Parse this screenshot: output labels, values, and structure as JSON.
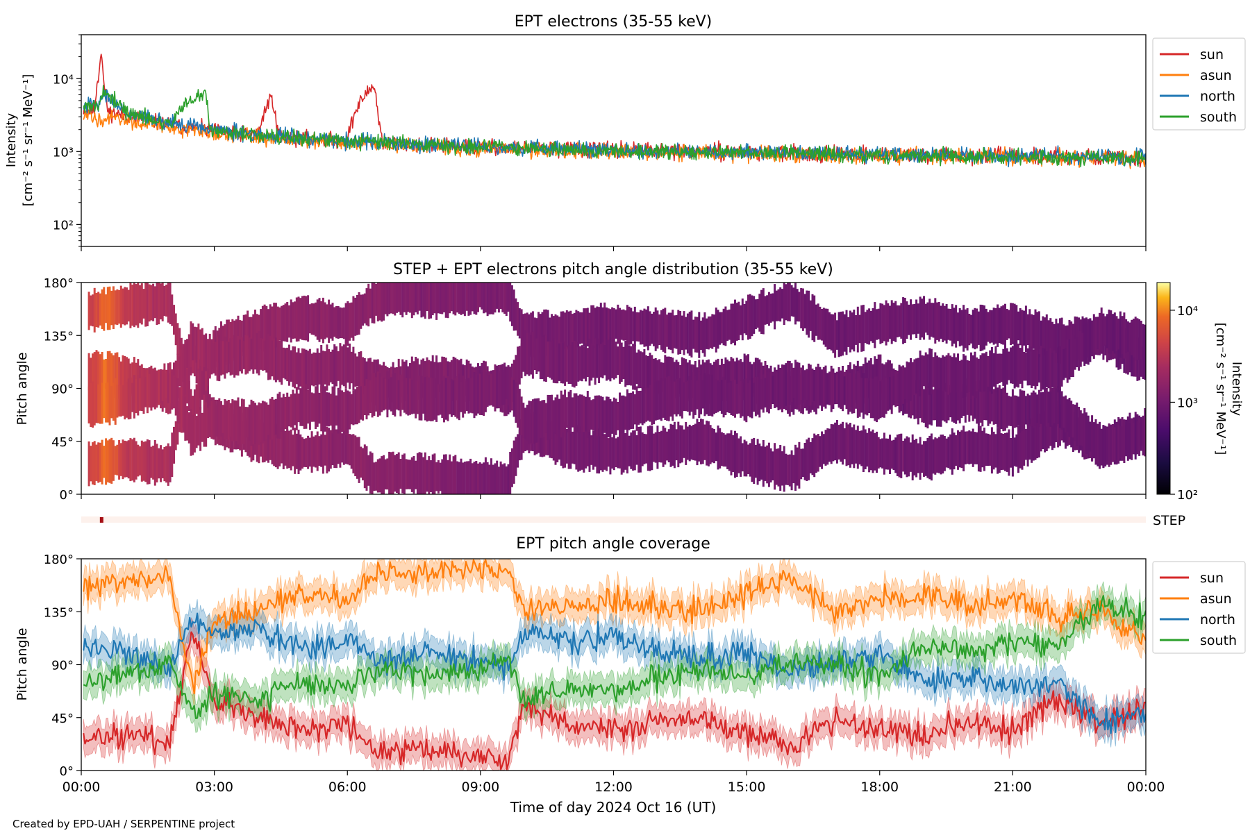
{
  "figure": {
    "credit": "Created by EPD-UAH / SERPENTINE project"
  },
  "colors": {
    "sun": "#d62728",
    "asun": "#ff7f0e",
    "north": "#1f77b4",
    "south": "#2ca02c"
  },
  "chart_data": [
    {
      "id": "intensity",
      "type": "line",
      "title": "EPT electrons (35-55 keV)",
      "ylabel": "Intensity",
      "yunit": "[cm⁻² s⁻¹ sr⁻¹ MeV⁻¹]",
      "yscale": "log",
      "ylim": [
        50,
        40000
      ],
      "yticks": [
        100,
        1000,
        10000
      ],
      "ytick_labels": [
        "10²",
        "10³",
        "10⁴"
      ],
      "x_unit": "hours since 2024 Oct 16 00:00 UT",
      "xlim": [
        0,
        24
      ],
      "legend_position": "outside-right-top",
      "legend": [
        "sun",
        "asun",
        "north",
        "south"
      ],
      "series": [
        {
          "name": "sun",
          "color": "#d62728",
          "x": [
            0.0,
            0.3,
            0.4,
            0.45,
            0.5,
            0.6,
            1.0,
            2.0,
            3.0,
            4.0,
            4.3,
            4.4,
            4.5,
            5.0,
            6.0,
            6.6,
            6.7,
            6.8,
            8.0,
            10.0,
            12.0,
            14.0,
            16.0,
            18.0,
            20.0,
            22.0,
            24.0
          ],
          "y": [
            3800,
            3600,
            12000,
            25000,
            9000,
            3500,
            3100,
            2300,
            1900,
            1700,
            5800,
            2100,
            1650,
            1500,
            1400,
            8200,
            2600,
            1300,
            1200,
            1100,
            1050,
            1000,
            950,
            900,
            880,
            850,
            800
          ]
        },
        {
          "name": "asun",
          "color": "#ff7f0e",
          "x": [
            0.0,
            1.0,
            2.0,
            3.0,
            4.0,
            6.0,
            8.0,
            10.0,
            12.0,
            14.0,
            16.0,
            18.0,
            20.0,
            22.0,
            24.0
          ],
          "y": [
            3000,
            2700,
            2100,
            1800,
            1600,
            1300,
            1150,
            1050,
            1000,
            950,
            900,
            880,
            860,
            830,
            800
          ]
        },
        {
          "name": "north",
          "color": "#1f77b4",
          "x": [
            0.0,
            0.4,
            0.5,
            1.0,
            2.0,
            3.0,
            4.0,
            6.0,
            8.0,
            10.0,
            12.0,
            14.0,
            16.0,
            18.0,
            20.0,
            22.0,
            24.0
          ],
          "y": [
            4000,
            4500,
            6000,
            3500,
            2500,
            2000,
            1700,
            1400,
            1250,
            1120,
            1050,
            1000,
            950,
            920,
            880,
            860,
            820
          ]
        },
        {
          "name": "south",
          "color": "#2ca02c",
          "x": [
            0.0,
            0.4,
            0.5,
            1.0,
            2.0,
            2.8,
            2.9,
            3.0,
            4.0,
            6.0,
            8.0,
            10.0,
            12.0,
            14.0,
            16.0,
            18.0,
            20.0,
            22.0,
            24.0
          ],
          "y": [
            3800,
            4200,
            6500,
            3400,
            2400,
            6500,
            2100,
            1950,
            1650,
            1380,
            1220,
            1100,
            1030,
            980,
            940,
            900,
            870,
            840,
            810
          ]
        }
      ]
    },
    {
      "id": "pad",
      "type": "heatmap",
      "title": "STEP + EPT electrons pitch angle distribution (35-55 keV)",
      "ylabel": "Pitch angle",
      "ytick_labels": [
        "0°",
        "45°",
        "90°",
        "135°",
        "180°"
      ],
      "yticks": [
        0,
        45,
        90,
        135,
        180
      ],
      "ylim": [
        0,
        180
      ],
      "xlim": [
        0,
        24
      ],
      "colorbar": {
        "label": "Intensity",
        "unit": "[cm⁻² s⁻¹ sr⁻¹ MeV⁻¹]",
        "scale": "log",
        "range": [
          100,
          20000
        ],
        "ticks": [
          100,
          1000,
          10000
        ],
        "tick_labels": [
          "10²",
          "10³",
          "10⁴"
        ],
        "colormap": "inferno"
      },
      "intensity_by_hour": {
        "hours": [
          0,
          0.4,
          0.5,
          1,
          2,
          3,
          4,
          5,
          6,
          6.6,
          7,
          8,
          9,
          10,
          12,
          14,
          16,
          18,
          20,
          22,
          24
        ],
        "values": [
          3500,
          5000,
          9000,
          3300,
          2500,
          2000,
          1800,
          1600,
          1450,
          1500,
          1350,
          1250,
          1150,
          1080,
          1000,
          950,
          920,
          900,
          880,
          850,
          820
        ]
      }
    },
    {
      "id": "step",
      "type": "heatmap",
      "label": "STEP",
      "xlim": [
        0,
        24
      ],
      "active_marker_hours": [
        0.42,
        0.48
      ]
    },
    {
      "id": "coverage",
      "type": "line",
      "title": "EPT pitch angle coverage",
      "ylabel": "Pitch angle",
      "xlabel": "Time of day 2024 Oct 16 (UT)",
      "ytick_labels": [
        "0°",
        "45°",
        "90°",
        "135°",
        "180°"
      ],
      "yticks": [
        0,
        45,
        90,
        135,
        180
      ],
      "ylim": [
        0,
        180
      ],
      "xlim": [
        0,
        24
      ],
      "xticks": [
        0,
        3,
        6,
        9,
        12,
        15,
        18,
        21,
        24
      ],
      "xtick_labels": [
        "00:00",
        "03:00",
        "06:00",
        "09:00",
        "12:00",
        "15:00",
        "18:00",
        "21:00",
        "00:00"
      ],
      "band_halfwidth_deg": 12,
      "legend_position": "outside-right-top",
      "legend": [
        "sun",
        "asun",
        "north",
        "south"
      ],
      "series": [
        {
          "name": "sun",
          "color": "#d62728",
          "x": [
            0,
            1,
            2,
            2.5,
            3,
            4,
            5,
            6,
            6.6,
            7,
            8,
            9,
            9.6,
            10,
            11,
            12,
            13,
            14,
            15,
            16,
            17,
            18,
            19,
            20,
            21,
            22,
            23,
            24
          ],
          "y": [
            25,
            30,
            25,
            120,
            60,
            45,
            35,
            40,
            15,
            18,
            15,
            12,
            10,
            55,
            40,
            35,
            40,
            45,
            30,
            20,
            45,
            35,
            30,
            40,
            35,
            60,
            40,
            55
          ]
        },
        {
          "name": "asun",
          "color": "#ff7f0e",
          "x": [
            0,
            1,
            2,
            2.5,
            3,
            4,
            5,
            6,
            6.6,
            7,
            8,
            9,
            9.6,
            10,
            11,
            12,
            13,
            14,
            15,
            16,
            17,
            18,
            19,
            20,
            21,
            22,
            23,
            24
          ],
          "y": [
            155,
            160,
            165,
            70,
            125,
            140,
            150,
            145,
            165,
            168,
            168,
            172,
            170,
            135,
            140,
            145,
            140,
            135,
            150,
            165,
            135,
            145,
            150,
            140,
            145,
            130,
            135,
            110
          ]
        },
        {
          "name": "north",
          "color": "#1f77b4",
          "x": [
            0,
            1,
            2,
            2.5,
            3,
            4,
            5,
            6,
            6.6,
            7,
            8,
            9,
            9.6,
            10,
            11,
            12,
            13,
            14,
            15,
            16,
            17,
            18,
            19,
            20,
            21,
            22,
            23,
            24
          ],
          "y": [
            105,
            100,
            85,
            130,
            115,
            120,
            105,
            110,
            95,
            95,
            100,
            95,
            85,
            120,
            110,
            115,
            100,
            95,
            100,
            85,
            90,
            100,
            75,
            80,
            70,
            75,
            40,
            50
          ]
        },
        {
          "name": "south",
          "color": "#2ca02c",
          "x": [
            0,
            1,
            2,
            2.5,
            3,
            4,
            5,
            6,
            6.6,
            7,
            8,
            9,
            9.6,
            10,
            11,
            12,
            13,
            14,
            15,
            16,
            17,
            18,
            19,
            20,
            21,
            22,
            23,
            24
          ],
          "y": [
            75,
            80,
            95,
            50,
            65,
            60,
            75,
            70,
            85,
            85,
            80,
            85,
            95,
            60,
            70,
            65,
            80,
            85,
            80,
            95,
            90,
            80,
            105,
            100,
            110,
            105,
            140,
            130
          ]
        }
      ]
    }
  ]
}
